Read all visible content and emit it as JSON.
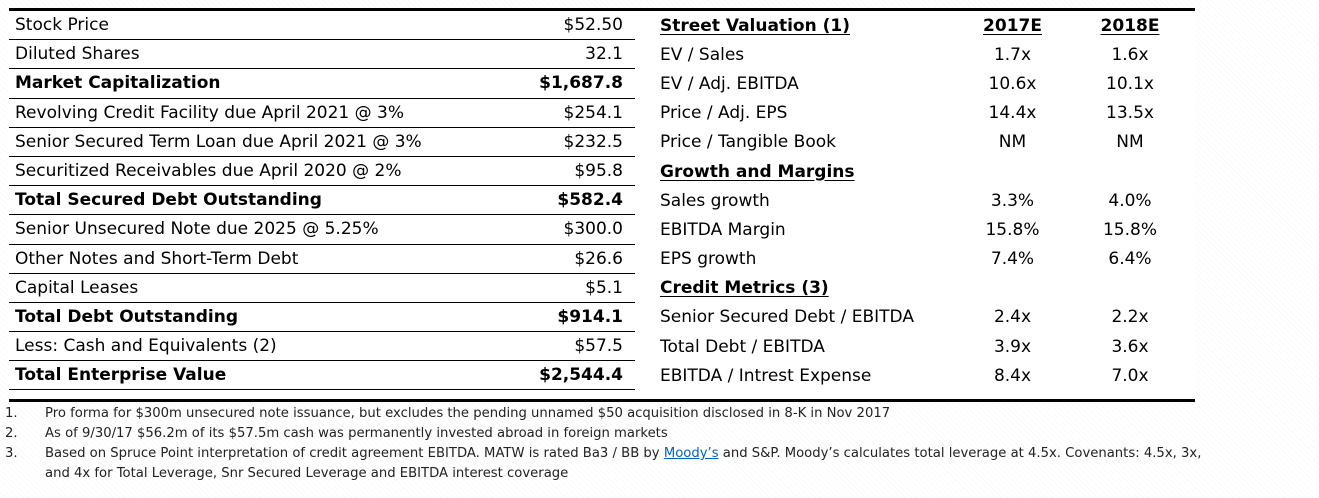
{
  "capitalization": [
    {
      "label": "Stock Price",
      "value": "$52.50",
      "bold": false
    },
    {
      "label": "Diluted Shares",
      "value": "32.1",
      "bold": false
    },
    {
      "label": "Market Capitalization",
      "value": "$1,687.8",
      "bold": true
    },
    {
      "label": "Revolving Credit Facility due April 2021 @ 3%",
      "value": "$254.1",
      "bold": false
    },
    {
      "label": "Senior Secured Term Loan due April 2021 @ 3%",
      "value": "$232.5",
      "bold": false
    },
    {
      "label": "Securitized Receivables due April 2020 @ 2%",
      "value": "$95.8",
      "bold": false
    },
    {
      "label": "Total Secured Debt Outstanding",
      "value": "$582.4",
      "bold": true
    },
    {
      "label": "Senior Unsecured Note due 2025 @ 5.25%",
      "value": "$300.0",
      "bold": false
    },
    {
      "label": "Other Notes and Short-Term Debt",
      "value": "$26.6",
      "bold": false
    },
    {
      "label": "Capital Leases",
      "value": "$5.1",
      "bold": false
    },
    {
      "label": "Total Debt Outstanding",
      "value": "$914.1",
      "bold": true
    },
    {
      "label": "Less: Cash and Equivalents (2)",
      "value": "$57.5",
      "bold": false
    },
    {
      "label": "Total Enterprise Value",
      "value": "$2,544.4",
      "bold": true
    }
  ],
  "valuation": {
    "header": {
      "label": "Street Valuation (1)",
      "col1": "2017E",
      "col2": "2018E"
    },
    "rows": [
      {
        "type": "row",
        "label": "EV / Sales",
        "v2017": "1.7x",
        "v2018": "1.6x"
      },
      {
        "type": "row",
        "label": "EV / Adj. EBITDA",
        "v2017": "10.6x",
        "v2018": "10.1x"
      },
      {
        "type": "row",
        "label": "Price / Adj. EPS",
        "v2017": "14.4x",
        "v2018": "13.5x"
      },
      {
        "type": "row",
        "label": "Price / Tangible Book",
        "v2017": "NM",
        "v2018": "NM"
      },
      {
        "type": "section",
        "label": "Growth and Margins"
      },
      {
        "type": "row",
        "label": "Sales growth",
        "v2017": "3.3%",
        "v2018": "4.0%"
      },
      {
        "type": "row",
        "label": "EBITDA Margin",
        "v2017": "15.8%",
        "v2018": "15.8%"
      },
      {
        "type": "row",
        "label": "EPS growth",
        "v2017": "7.4%",
        "v2018": "6.4%"
      },
      {
        "type": "section",
        "label": "Credit Metrics (3)"
      },
      {
        "type": "row",
        "label": "Senior Secured Debt / EBITDA",
        "v2017": "2.4x",
        "v2018": "2.2x"
      },
      {
        "type": "row",
        "label": "Total Debt / EBITDA",
        "v2017": "3.9x",
        "v2018": "3.6x"
      },
      {
        "type": "row",
        "label": "EBITDA / Intrest Expense",
        "v2017": "8.4x",
        "v2018": "7.0x"
      }
    ]
  },
  "footnotes": {
    "n1": "1.",
    "t1": "Pro forma for $300m unsecured note issuance, but excludes the pending unnamed $50 acquisition disclosed in 8-K in Nov 2017",
    "n2": "2.",
    "t2": "As of 9/30/17 $56.2m of its $57.5m cash was permanently invested abroad in foreign markets",
    "n3": "3.",
    "t3_before": "Based on Spruce Point interpretation of credit agreement EBITDA. MATW is rated Ba3 / BB by ",
    "t3_link": "Moody’s",
    "t3_after": " and S&P. Moody’s calculates total leverage at 4.5x. Covenants: 4.5x, 3x,",
    "t3_line2": "and 4x for Total Leverage, Snr Secured Leverage and EBITDA interest coverage"
  }
}
